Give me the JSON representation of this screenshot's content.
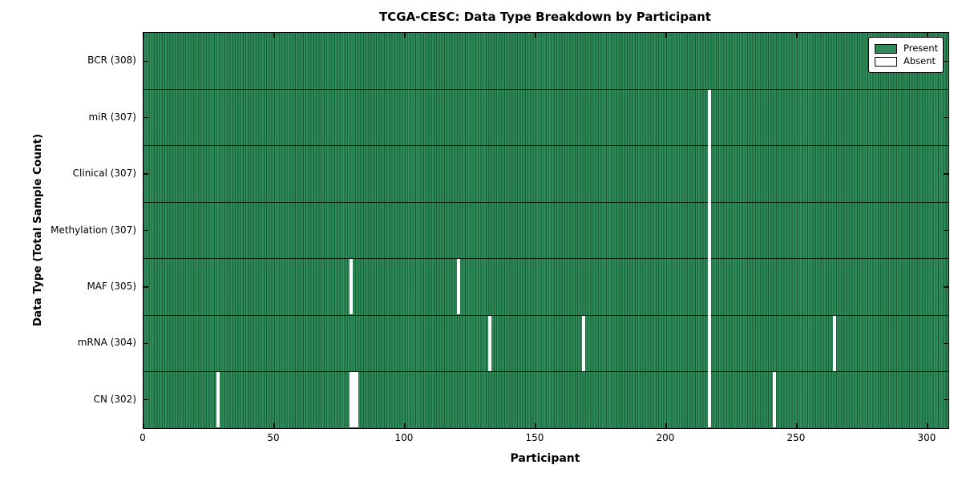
{
  "chart_data": {
    "type": "heatmap",
    "title": "TCGA-CESC: Data Type Breakdown by Participant",
    "xlabel": "Participant",
    "ylabel": "Data Type (Total Sample Count)",
    "n_participants": 308,
    "xlim": [
      0,
      308
    ],
    "x_ticks": [
      0,
      50,
      100,
      150,
      200,
      250,
      300
    ],
    "grid": "row-separators",
    "legend": {
      "position": "upper right",
      "present_label": "Present",
      "absent_label": "Absent"
    },
    "colors": {
      "present": "#2e8b57",
      "present_edge": "#1a5a38",
      "absent": "#ffffff",
      "spine": "#000000"
    },
    "rows": [
      {
        "label": "BCR (308)",
        "data_type": "BCR",
        "total": 308,
        "absent_ranges": []
      },
      {
        "label": "miR (307)",
        "data_type": "miR",
        "total": 307,
        "absent_ranges": [
          {
            "start": 216,
            "count": 1
          }
        ]
      },
      {
        "label": "Clinical (307)",
        "data_type": "Clinical",
        "total": 307,
        "absent_ranges": [
          {
            "start": 216,
            "count": 1
          }
        ]
      },
      {
        "label": "Methylation (307)",
        "data_type": "Methylation",
        "total": 307,
        "absent_ranges": [
          {
            "start": 216,
            "count": 1
          }
        ]
      },
      {
        "label": "MAF (305)",
        "data_type": "MAF",
        "total": 305,
        "absent_ranges": [
          {
            "start": 79,
            "count": 1
          },
          {
            "start": 120,
            "count": 1
          },
          {
            "start": 216,
            "count": 1
          }
        ]
      },
      {
        "label": "mRNA (304)",
        "data_type": "mRNA",
        "total": 304,
        "absent_ranges": [
          {
            "start": 132,
            "count": 1
          },
          {
            "start": 168,
            "count": 1
          },
          {
            "start": 216,
            "count": 1
          },
          {
            "start": 264,
            "count": 1
          }
        ]
      },
      {
        "label": "CN (302)",
        "data_type": "CN",
        "total": 302,
        "absent_ranges": [
          {
            "start": 28,
            "count": 1
          },
          {
            "start": 79,
            "count": 3
          },
          {
            "start": 216,
            "count": 1
          },
          {
            "start": 241,
            "count": 1
          }
        ]
      }
    ]
  }
}
